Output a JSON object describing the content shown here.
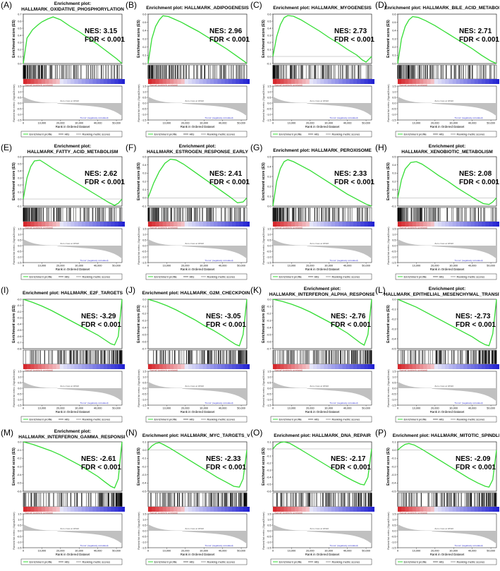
{
  "common": {
    "ylabel_es": "Enrichment score (ES)",
    "ylabel_metric": "Ranked list metric (Signal2Noise)",
    "xlabel": "Rank in Ordered Dataset",
    "xticks": [
      "0",
      "10,000",
      "20,000",
      "30,000",
      "40,000",
      "50,000"
    ],
    "metric_yticks": [
      "1.5",
      "1.0",
      "0.5",
      "0.0",
      "-0.5",
      "-1.0",
      "-1.5"
    ],
    "pos_corr_label": "'Normal' (positively correlated)",
    "neg_corr_label": "'Tumor' (negatively correlated)",
    "zero_cross_label": "Zero cross at 18322",
    "legend": [
      "Enrichment profile",
      "Hits",
      "Ranking metric scores"
    ],
    "colors": {
      "enrichment_line": "#33dd33",
      "hits": "#000000",
      "metric_fill": "#c0c0c0",
      "positive_band": "#d9383a",
      "negative_band": "#2a2acc"
    }
  },
  "chart_data": [
    {
      "letter": "(A)",
      "title_l1": "Enrichment plot:",
      "title_l2": "HALLMARK_OXIDATIVE_PHOSPHORYLATION",
      "nes_text": "NES: 3.15",
      "fdr_text": "FDR < 0.001",
      "type": "line",
      "xlabel": "Rank in Ordered Dataset",
      "ylabel": "Enrichment score (ES)",
      "ylim": [
        0,
        0.7
      ],
      "yticks": [
        "0.7",
        "0.6",
        "0.5",
        "0.4",
        "0.3",
        "0.2",
        "0.1",
        "0.0"
      ],
      "x": [
        0,
        2000,
        5000,
        8000,
        10000,
        13000,
        16000,
        20000,
        25000,
        30000,
        35000,
        40000,
        45000,
        50000,
        53000
      ],
      "y": [
        0.0,
        0.36,
        0.48,
        0.55,
        0.59,
        0.63,
        0.66,
        0.62,
        0.53,
        0.45,
        0.36,
        0.27,
        0.17,
        0.07,
        0.0
      ]
    },
    {
      "letter": "(B)",
      "title_l1": "Enrichment plot: HALLMARK_ADIPOGENESIS",
      "title_l2": "",
      "nes_text": "NES: 2.96",
      "fdr_text": "FDR < 0.001",
      "type": "line",
      "xlabel": "Rank in Ordered Dataset",
      "ylabel": "Enrichment score (ES)",
      "ylim": [
        0,
        0.6
      ],
      "yticks": [
        "0.6",
        "0.5",
        "0.4",
        "0.3",
        "0.2",
        "0.1",
        "0.0"
      ],
      "x": [
        0,
        2000,
        4000,
        6000,
        8000,
        11000,
        14000,
        18000,
        22000,
        27000,
        32000,
        37000,
        42000,
        47000,
        52000,
        53000
      ],
      "y": [
        0.0,
        0.3,
        0.45,
        0.53,
        0.58,
        0.57,
        0.54,
        0.5,
        0.45,
        0.39,
        0.32,
        0.25,
        0.18,
        0.1,
        0.02,
        0.0
      ]
    },
    {
      "letter": "(C)",
      "title_l1": "Enrichment plot: HALLMARK_MYOGENESIS",
      "title_l2": "",
      "nes_text": "NES: 2.73",
      "fdr_text": "FDR < 0.001",
      "type": "line",
      "xlabel": "Rank in Ordered Dataset",
      "ylabel": "Enrichment score (ES)",
      "ylim": [
        -0.1,
        0.6
      ],
      "yticks": [
        "0.6",
        "0.5",
        "0.4",
        "0.3",
        "0.2",
        "0.1",
        "0.0",
        "-0.1"
      ],
      "x": [
        0,
        2000,
        4000,
        6000,
        8000,
        11000,
        15000,
        20000,
        25000,
        30000,
        35000,
        40000,
        45000,
        48000,
        50000,
        53000
      ],
      "y": [
        0.0,
        0.28,
        0.45,
        0.55,
        0.58,
        0.57,
        0.52,
        0.44,
        0.36,
        0.27,
        0.19,
        0.1,
        0.02,
        -0.05,
        -0.08,
        0.0
      ]
    },
    {
      "letter": "(D)",
      "title_l1": "Enrichment plot: HALLMARK_BILE_ACID_METABOLISM",
      "title_l2": "",
      "nes_text": "NES: 2.71",
      "fdr_text": "FDR < 0.001",
      "type": "line",
      "xlabel": "Rank in Ordered Dataset",
      "ylabel": "Enrichment score (ES)",
      "ylim": [
        0,
        0.6
      ],
      "yticks": [
        "0.6",
        "0.5",
        "0.4",
        "0.3",
        "0.2",
        "0.1",
        "0.0"
      ],
      "x": [
        0,
        2000,
        4000,
        6000,
        8000,
        11000,
        15000,
        20000,
        25000,
        30000,
        35000,
        40000,
        45000,
        50000,
        53000
      ],
      "y": [
        0.0,
        0.3,
        0.45,
        0.53,
        0.57,
        0.56,
        0.52,
        0.46,
        0.39,
        0.32,
        0.25,
        0.18,
        0.1,
        0.03,
        0.0
      ]
    },
    {
      "letter": "(E)",
      "title_l1": "Enrichment plot:",
      "title_l2": "HALLMARK_FATTY_ACID_METABOLISM",
      "nes_text": "NES: 2.62",
      "fdr_text": "FDR < 0.001",
      "type": "line",
      "xlabel": "Rank in Ordered Dataset",
      "ylabel": "Enrichment score (ES)",
      "ylim": [
        -0.1,
        0.6
      ],
      "yticks": [
        "0.6",
        "0.5",
        "0.4",
        "0.3",
        "0.2",
        "0.1",
        "0.0",
        "-0.1"
      ],
      "x": [
        0,
        2000,
        4000,
        6000,
        9000,
        12000,
        16000,
        21000,
        26000,
        31000,
        36000,
        41000,
        46000,
        49000,
        51000,
        53000
      ],
      "y": [
        0.0,
        0.3,
        0.46,
        0.54,
        0.55,
        0.5,
        0.43,
        0.35,
        0.27,
        0.19,
        0.11,
        0.03,
        -0.05,
        -0.09,
        -0.06,
        0.0
      ]
    },
    {
      "letter": "(F)",
      "title_l1": "Enrichment plot:",
      "title_l2": "HALLMARK_ESTROGEN_RESPONSE_EARLY",
      "nes_text": "NES: 2.41",
      "fdr_text": "FDR < 0.001",
      "type": "line",
      "xlabel": "Rank in Ordered Dataset",
      "ylabel": "Enrichment score (ES)",
      "ylim": [
        -0.1,
        0.5
      ],
      "yticks": [
        "0.5",
        "0.4",
        "0.3",
        "0.2",
        "0.1",
        "0.0",
        "-0.1"
      ],
      "x": [
        0,
        3000,
        6000,
        9000,
        12000,
        15000,
        19000,
        24000,
        29000,
        34000,
        39000,
        44000,
        48000,
        51000,
        53000
      ],
      "y": [
        0.0,
        0.18,
        0.32,
        0.42,
        0.47,
        0.46,
        0.41,
        0.33,
        0.25,
        0.17,
        0.09,
        0.01,
        -0.06,
        -0.05,
        0.0
      ]
    },
    {
      "letter": "(G)",
      "title_l1": "Enrichment plot: HALLMARK_PEROXISOME",
      "title_l2": "",
      "nes_text": "NES: 2.33",
      "fdr_text": "FDR < 0.001",
      "type": "line",
      "xlabel": "Rank in Ordered Dataset",
      "ylabel": "Enrichment score (ES)",
      "ylim": [
        0,
        0.5
      ],
      "yticks": [
        "0.5",
        "0.4",
        "0.3",
        "0.2",
        "0.1",
        "0.0"
      ],
      "x": [
        0,
        2000,
        4000,
        6000,
        8000,
        11000,
        15000,
        20000,
        25000,
        30000,
        35000,
        40000,
        45000,
        50000,
        53000
      ],
      "y": [
        0.0,
        0.25,
        0.38,
        0.45,
        0.47,
        0.45,
        0.41,
        0.36,
        0.3,
        0.24,
        0.18,
        0.12,
        0.07,
        0.02,
        0.0
      ]
    },
    {
      "letter": "(H)",
      "title_l1": "Enrichment plot:",
      "title_l2": "HALLMARK_XENOBIOTIC_METABOLISM",
      "nes_text": "NES: 2.08",
      "fdr_text": "FDR < 0.001",
      "type": "line",
      "xlabel": "Rank in Ordered Dataset",
      "ylabel": "Enrichment score (ES)",
      "ylim": [
        -0.1,
        0.5
      ],
      "yticks": [
        "0.5",
        "0.4",
        "0.3",
        "0.2",
        "0.1",
        "0.0",
        "-0.1"
      ],
      "x": [
        0,
        2000,
        4000,
        7000,
        10000,
        13000,
        17000,
        22000,
        27000,
        32000,
        37000,
        42000,
        46000,
        49000,
        51000,
        53000
      ],
      "y": [
        0.0,
        0.22,
        0.35,
        0.43,
        0.44,
        0.41,
        0.35,
        0.27,
        0.2,
        0.12,
        0.05,
        -0.02,
        -0.07,
        -0.08,
        -0.05,
        0.0
      ]
    },
    {
      "letter": "(I)",
      "title_l1": "Enrichment plot: HALLMARK_E2F_TARGETS",
      "title_l2": "",
      "nes_text": "NES: -3.29",
      "fdr_text": "FDR < 0.001",
      "type": "line",
      "xlabel": "Rank in Ordered Dataset",
      "ylabel": "Enrichment score (ES)",
      "ylim": [
        -0.8,
        0.0
      ],
      "yticks": [
        "-0.0",
        "-0.1",
        "-0.2",
        "-0.3",
        "-0.4",
        "-0.5",
        "-0.6",
        "-0.7",
        "-0.8"
      ],
      "x": [
        0,
        5000,
        10000,
        15000,
        20000,
        25000,
        30000,
        35000,
        40000,
        44000,
        47000,
        49000,
        51000,
        52000,
        53000
      ],
      "y": [
        0.0,
        -0.05,
        -0.11,
        -0.18,
        -0.26,
        -0.34,
        -0.42,
        -0.5,
        -0.58,
        -0.66,
        -0.72,
        -0.74,
        -0.6,
        -0.3,
        0.0
      ]
    },
    {
      "letter": "(J)",
      "title_l1": "Enrichment plot: HALLMARK_G2M_CHECKPOINT",
      "title_l2": "",
      "nes_text": "NES: -3.05",
      "fdr_text": "FDR < 0.001",
      "type": "line",
      "xlabel": "Rank in Ordered Dataset",
      "ylabel": "Enrichment score (ES)",
      "ylim": [
        -0.7,
        0.0
      ],
      "yticks": [
        "0.0",
        "-0.1",
        "-0.2",
        "-0.3",
        "-0.4",
        "-0.5",
        "-0.6",
        "-0.7"
      ],
      "x": [
        0,
        5000,
        10000,
        15000,
        20000,
        25000,
        30000,
        35000,
        40000,
        44000,
        47000,
        49000,
        51000,
        52000,
        53000
      ],
      "y": [
        0.0,
        -0.04,
        -0.09,
        -0.15,
        -0.22,
        -0.29,
        -0.37,
        -0.44,
        -0.52,
        -0.59,
        -0.64,
        -0.66,
        -0.5,
        -0.25,
        0.0
      ]
    },
    {
      "letter": "(K)",
      "title_l1": "Enrichment plot:",
      "title_l2": "HALLMARK_INTERFERON_ALPHA_RESPONSE",
      "nes_text": "NES: -2.76",
      "fdr_text": "FDR < 0.001",
      "type": "line",
      "xlabel": "Rank in Ordered Dataset",
      "ylabel": "Enrichment score (ES)",
      "ylim": [
        -0.7,
        0.0
      ],
      "yticks": [
        "0.0",
        "-0.1",
        "-0.2",
        "-0.3",
        "-0.4",
        "-0.5",
        "-0.6",
        "-0.7"
      ],
      "x": [
        0,
        5000,
        10000,
        15000,
        20000,
        25000,
        30000,
        35000,
        40000,
        44000,
        47000,
        49000,
        51000,
        52000,
        53000
      ],
      "y": [
        0.0,
        -0.03,
        -0.07,
        -0.12,
        -0.18,
        -0.25,
        -0.32,
        -0.4,
        -0.48,
        -0.56,
        -0.62,
        -0.65,
        -0.5,
        -0.25,
        0.0
      ]
    },
    {
      "letter": "(L)",
      "title_l1": "Enrichment plot:",
      "title_l2": "HALLMARK_EPITHELIAL_MESENCHYMAL_TRANSITION",
      "nes_text": "NES: -2.73",
      "fdr_text": "FDR < 0.001",
      "type": "line",
      "xlabel": "Rank in Ordered Dataset",
      "ylabel": "Enrichment score (ES)",
      "ylim": [
        -0.5,
        0.0
      ],
      "yticks": [
        "0.0",
        "-0.1",
        "-0.2",
        "-0.3",
        "-0.4",
        "-0.5"
      ],
      "x": [
        0,
        5000,
        10000,
        15000,
        20000,
        25000,
        30000,
        35000,
        40000,
        44000,
        47000,
        49000,
        51000,
        52000,
        53000
      ],
      "y": [
        0.0,
        -0.04,
        -0.08,
        -0.13,
        -0.18,
        -0.23,
        -0.28,
        -0.33,
        -0.38,
        -0.43,
        -0.46,
        -0.47,
        -0.35,
        -0.18,
        0.0
      ]
    },
    {
      "letter": "(M)",
      "title_l1": "Enrichment plot:",
      "title_l2": "HALLMARK_INTERFERON_GAMMA_RESPONSE",
      "nes_text": "NES: -2.61",
      "fdr_text": "FDR < 0.001",
      "type": "line",
      "xlabel": "Rank in Ordered Dataset",
      "ylabel": "Enrichment score (ES)",
      "ylim": [
        -0.6,
        0.0
      ],
      "yticks": [
        "0.0",
        "-0.1",
        "-0.2",
        "-0.3",
        "-0.4",
        "-0.5",
        "-0.6"
      ],
      "x": [
        0,
        5000,
        10000,
        15000,
        20000,
        25000,
        30000,
        35000,
        40000,
        44000,
        47000,
        49000,
        51000,
        52000,
        53000
      ],
      "y": [
        0.0,
        -0.03,
        -0.07,
        -0.11,
        -0.16,
        -0.22,
        -0.28,
        -0.35,
        -0.42,
        -0.49,
        -0.54,
        -0.56,
        -0.45,
        -0.22,
        0.0
      ]
    },
    {
      "letter": "(N)",
      "title_l1": "Enrichment plot: HALLMARK_MYC_TARGETS_V1",
      "title_l2": "",
      "nes_text": "NES: -2.33",
      "fdr_text": "FDR < 0.001",
      "type": "line",
      "xlabel": "Rank in Ordered Dataset",
      "ylabel": "Enrichment score (ES)",
      "ylim": [
        -0.5,
        0.1
      ],
      "yticks": [
        "0.1",
        "0.0",
        "-0.1",
        "-0.2",
        "-0.3",
        "-0.4",
        "-0.5"
      ],
      "x": [
        0,
        2000,
        4000,
        6000,
        8000,
        12000,
        17000,
        22000,
        27000,
        32000,
        37000,
        42000,
        46000,
        49000,
        51000,
        52000,
        53000
      ],
      "y": [
        0.0,
        0.05,
        0.08,
        0.09,
        0.07,
        0.02,
        -0.05,
        -0.12,
        -0.19,
        -0.26,
        -0.33,
        -0.39,
        -0.44,
        -0.45,
        -0.35,
        -0.18,
        0.0
      ]
    },
    {
      "letter": "(O)",
      "title_l1": "Enrichment plot: HALLMARK_DNA_REPAIR",
      "title_l2": "",
      "nes_text": "NES: -2.17",
      "fdr_text": "FDR < 0.001",
      "type": "line",
      "xlabel": "Rank in Ordered Dataset",
      "ylabel": "Enrichment score (ES)",
      "ylim": [
        -0.6,
        0.1
      ],
      "yticks": [
        "0.1",
        "0.0",
        "-0.1",
        "-0.2",
        "-0.3",
        "-0.4",
        "-0.5",
        "-0.6"
      ],
      "x": [
        0,
        2000,
        4000,
        6000,
        9000,
        13000,
        18000,
        23000,
        28000,
        33000,
        38000,
        43000,
        47000,
        49000,
        51000,
        52000,
        53000
      ],
      "y": [
        0.0,
        0.06,
        0.09,
        0.1,
        0.08,
        0.02,
        -0.06,
        -0.14,
        -0.22,
        -0.3,
        -0.38,
        -0.45,
        -0.5,
        -0.51,
        -0.4,
        -0.2,
        0.0
      ]
    },
    {
      "letter": "(P)",
      "title_l1": "Enrichment plot: HALLMARK_MITOTIC_SPINDLE",
      "title_l2": "",
      "nes_text": "NES: -2.09",
      "fdr_text": "FDR < 0.001",
      "type": "line",
      "xlabel": "Rank in Ordered Dataset",
      "ylabel": "Enrichment score (ES)",
      "ylim": [
        -0.5,
        0.1
      ],
      "yticks": [
        "0.1",
        "0.0",
        "-0.1",
        "-0.2",
        "-0.3",
        "-0.4",
        "-0.5"
      ],
      "x": [
        0,
        2000,
        4000,
        6000,
        9000,
        13000,
        18000,
        23000,
        28000,
        33000,
        38000,
        43000,
        47000,
        49000,
        51000,
        52000,
        53000
      ],
      "y": [
        0.0,
        0.04,
        0.07,
        0.08,
        0.06,
        0.01,
        -0.06,
        -0.13,
        -0.2,
        -0.27,
        -0.34,
        -0.4,
        -0.44,
        -0.45,
        -0.36,
        -0.18,
        0.0
      ]
    }
  ]
}
